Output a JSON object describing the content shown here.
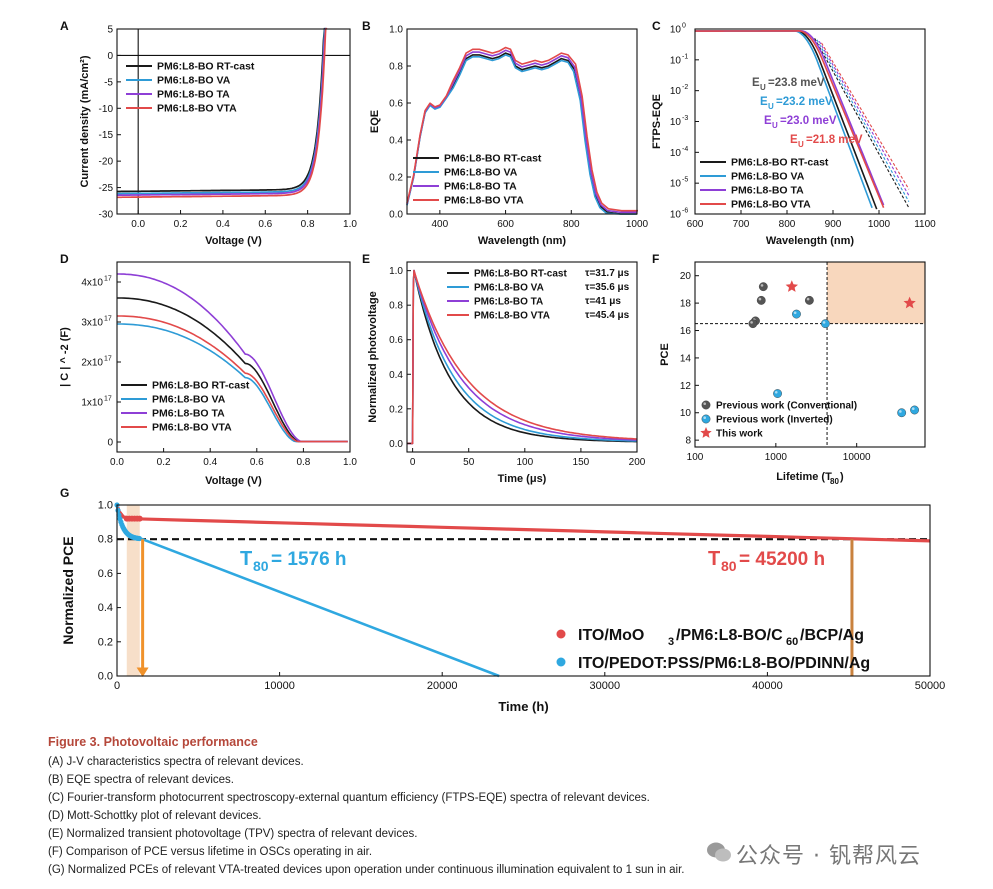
{
  "chart_data": [
    {
      "panel": "A",
      "type": "line",
      "xlabel": "Voltage (V)",
      "ylabel": "Current density (mA/cm²)",
      "xlim": [
        -0.1,
        1.0
      ],
      "ylim": [
        -30,
        5
      ],
      "xticks": [
        "0.0",
        "0.2",
        "0.4",
        "0.6",
        "0.8",
        "1.0"
      ],
      "yticks": [
        "5",
        "0",
        "-5",
        "-10",
        "-15",
        "-20",
        "-25",
        "-30"
      ],
      "legend_position": "upper-left",
      "series": [
        {
          "name": "PM6:L8-BO RT-cast",
          "color": "#1a1a1a",
          "jsc": -25.7,
          "voc": 0.872
        },
        {
          "name": "PM6:L8-BO VA",
          "color": "#2e9bd6",
          "jsc": -26.1,
          "voc": 0.875
        },
        {
          "name": "PM6:L8-BO TA",
          "color": "#8e3fd6",
          "jsc": -26.4,
          "voc": 0.877
        },
        {
          "name": "PM6:L8-BO VTA",
          "color": "#e24a4a",
          "jsc": -26.8,
          "voc": 0.88
        }
      ]
    },
    {
      "panel": "B",
      "type": "line",
      "xlabel": "Wavelength (nm)",
      "ylabel": "EQE",
      "xlim": [
        300,
        1000
      ],
      "ylim": [
        0,
        1.0
      ],
      "xticks": [
        "400",
        "600",
        "800",
        "1000"
      ],
      "yticks": [
        "0.0",
        "0.2",
        "0.4",
        "0.6",
        "0.8",
        "1.0"
      ],
      "legend_position": "lower-center",
      "series": [
        {
          "name": "PM6:L8-BO RT-cast",
          "color": "#1a1a1a"
        },
        {
          "name": "PM6:L8-BO VA",
          "color": "#2e9bd6"
        },
        {
          "name": "PM6:L8-BO TA",
          "color": "#8e3fd6"
        },
        {
          "name": "PM6:L8-BO VTA",
          "color": "#e24a4a"
        }
      ]
    },
    {
      "panel": "C",
      "type": "line",
      "xlabel": "Wavelength (nm)",
      "ylabel": "FTPS-EQE",
      "xlim": [
        600,
        1100
      ],
      "ylim_log10": [
        -6,
        0
      ],
      "log_y": true,
      "xticks": [
        "600",
        "700",
        "800",
        "900",
        "1000",
        "1100"
      ],
      "yticks_exp": [
        "0",
        "-1",
        "-2",
        "-3",
        "-4",
        "-5",
        "-6"
      ],
      "legend_position": "lower-left",
      "urbach": [
        {
          "label": "E",
          "sub": "U",
          "value": "=23.8 meV",
          "color": "#555555"
        },
        {
          "label": "E",
          "sub": "U",
          "value": "=23.2 meV",
          "color": "#2e9bd6"
        },
        {
          "label": "E",
          "sub": "U",
          "value": "=23.0 meV",
          "color": "#8e3fd6"
        },
        {
          "label": "E",
          "sub": "U",
          "value": "=21.8 meV",
          "color": "#e24a4a"
        }
      ],
      "series": [
        {
          "name": "PM6:L8-BO RT-cast",
          "color": "#1a1a1a",
          "edge_nm": 820
        },
        {
          "name": "PM6:L8-BO VA",
          "color": "#2e9bd6",
          "edge_nm": 815
        },
        {
          "name": "PM6:L8-BO TA",
          "color": "#8e3fd6",
          "edge_nm": 830
        },
        {
          "name": "PM6:L8-BO VTA",
          "color": "#e24a4a",
          "edge_nm": 825
        }
      ]
    },
    {
      "panel": "D",
      "type": "line",
      "xlabel": "Voltage (V)",
      "ylabel": "| C | ^ -2 (F)",
      "xlim": [
        0.0,
        1.0
      ],
      "ylim": [
        -2.5e+16,
        4.5e+17
      ],
      "xticks": [
        "0.0",
        "0.2",
        "0.4",
        "0.6",
        "0.8",
        "1.0"
      ],
      "yticks": [
        {
          "base": "4x10",
          "exp": "17"
        },
        {
          "base": "3x10",
          "exp": "17"
        },
        {
          "base": "2x10",
          "exp": "17"
        },
        {
          "base": "1x10",
          "exp": "17"
        },
        {
          "base": "0",
          "exp": ""
        }
      ],
      "legend_position": "lower-left",
      "series": [
        {
          "name": "PM6:L8-BO RT-cast",
          "color": "#1a1a1a",
          "c0": 3.6e+17
        },
        {
          "name": "PM6:L8-BO VA",
          "color": "#2e9bd6",
          "c0": 2.95e+17
        },
        {
          "name": "PM6:L8-BO TA",
          "color": "#8e3fd6",
          "c0": 4.2e+17
        },
        {
          "name": "PM6:L8-BO VTA",
          "color": "#e24a4a",
          "c0": 3.15e+17
        }
      ]
    },
    {
      "panel": "E",
      "type": "line",
      "xlabel": "Time (μs)",
      "ylabel": "Normalized photovoltage",
      "xlim": [
        -5,
        200
      ],
      "ylim": [
        -0.05,
        1.05
      ],
      "xticks": [
        "0",
        "50",
        "100",
        "150",
        "200"
      ],
      "yticks": [
        "0.0",
        "0.2",
        "0.4",
        "0.6",
        "0.8",
        "1.0"
      ],
      "legend_position": "upper-right",
      "series": [
        {
          "name": "PM6:L8-BO RT-cast",
          "color": "#1a1a1a",
          "tau_label": "τ=31.7 μs",
          "tau": 31.7
        },
        {
          "name": "PM6:L8-BO VA",
          "color": "#2e9bd6",
          "tau_label": "τ=35.6 μs",
          "tau": 35.6
        },
        {
          "name": "PM6:L8-BO TA",
          "color": "#8e3fd6",
          "tau_label": "τ=41 μs",
          "tau": 41
        },
        {
          "name": "PM6:L8-BO VTA",
          "color": "#e24a4a",
          "tau_label": "τ=45.4 μs",
          "tau": 45.4
        }
      ]
    },
    {
      "panel": "F",
      "type": "scatter",
      "xlabel": "Lifetime (T",
      "xlabel_sub": "80",
      "xlabel_end": ")",
      "ylabel": "PCE",
      "log_x": true,
      "xlim": [
        100,
        70000
      ],
      "ylim": [
        7.5,
        21
      ],
      "xticks": [
        "100",
        "1000",
        "10000"
      ],
      "yticks": [
        "20",
        "18",
        "16",
        "14",
        "12",
        "10",
        "8"
      ],
      "thresholds": {
        "x": 4300,
        "y": 16.5
      },
      "legend": [
        {
          "name": "Previous work (Conventional)",
          "color": "#555555",
          "marker": "sphere"
        },
        {
          "name": "Previous work (Inverted)",
          "color": "#2fa8e0",
          "marker": "sphere"
        },
        {
          "name": "This work",
          "color": "#e24a4a",
          "marker": "star"
        }
      ],
      "points": [
        {
          "group": "conventional",
          "x": 700,
          "y": 19.2
        },
        {
          "group": "conventional",
          "x": 660,
          "y": 18.2
        },
        {
          "group": "conventional",
          "x": 2600,
          "y": 18.2
        },
        {
          "group": "conventional",
          "x": 560,
          "y": 16.7
        },
        {
          "group": "conventional",
          "x": 520,
          "y": 16.5
        },
        {
          "group": "inverted",
          "x": 1800,
          "y": 17.2
        },
        {
          "group": "inverted",
          "x": 4100,
          "y": 16.5
        },
        {
          "group": "inverted",
          "x": 1050,
          "y": 11.4
        },
        {
          "group": "inverted",
          "x": 36000,
          "y": 10.0
        },
        {
          "group": "inverted",
          "x": 52000,
          "y": 10.2
        },
        {
          "group": "this",
          "x": 1576,
          "y": 19.2
        },
        {
          "group": "this",
          "x": 45200,
          "y": 18.0
        }
      ]
    },
    {
      "panel": "G",
      "type": "line",
      "xlabel": "Time (h)",
      "ylabel": "Normalized PCE",
      "xlim": [
        0,
        50000
      ],
      "ylim": [
        0,
        1.0
      ],
      "xticks": [
        "0",
        "10000",
        "20000",
        "30000",
        "40000",
        "50000"
      ],
      "yticks": [
        "1.0",
        "0.8",
        "0.6",
        "0.4",
        "0.2",
        "0.0"
      ],
      "reference_line": 0.8,
      "annotations": [
        {
          "prefix": "T",
          "sub": "80",
          "text": " = 1576 h",
          "color": "#2fa8e0",
          "x": 1576
        },
        {
          "prefix": "T",
          "sub": "80",
          "text": " = 45200 h",
          "color": "#e24a4a",
          "x": 45200
        }
      ],
      "series": [
        {
          "name": "ITO/MoO",
          "name_sub": "3",
          "name_rest": "/PM6:L8-BO/C",
          "name_sub2": "60",
          "name_end": "/BCP/Ag",
          "color": "#e24a4a",
          "start": 0.92,
          "end": 0.79
        },
        {
          "name": "ITO/PEDOT:PSS/PM6:L8-BO/PDINN/Ag",
          "color": "#2fa8e0",
          "zero_at": 23500
        }
      ]
    }
  ],
  "caption": {
    "title": "Figure 3.  Photovoltaic performance",
    "lines": [
      "(A) J-V characteristics spectra of relevant devices.",
      "(B) EQE spectra of relevant devices.",
      "(C) Fourier-transform photocurrent spectroscopy-external quantum efficiency (FTPS-EQE) spectra of relevant devices.",
      "(D) Mott-Schottky plot of relevant devices.",
      "(E) Normalized transient photovoltage (TPV) spectra of relevant devices.",
      "(F) Comparison of PCE versus lifetime in OSCs operating in air.",
      "(G) Normalized PCEs of relevant VTA-treated devices upon operation under continuous illumination equivalent to 1 sun in air."
    ]
  },
  "watermark": "公众号 · 钒帮风云"
}
